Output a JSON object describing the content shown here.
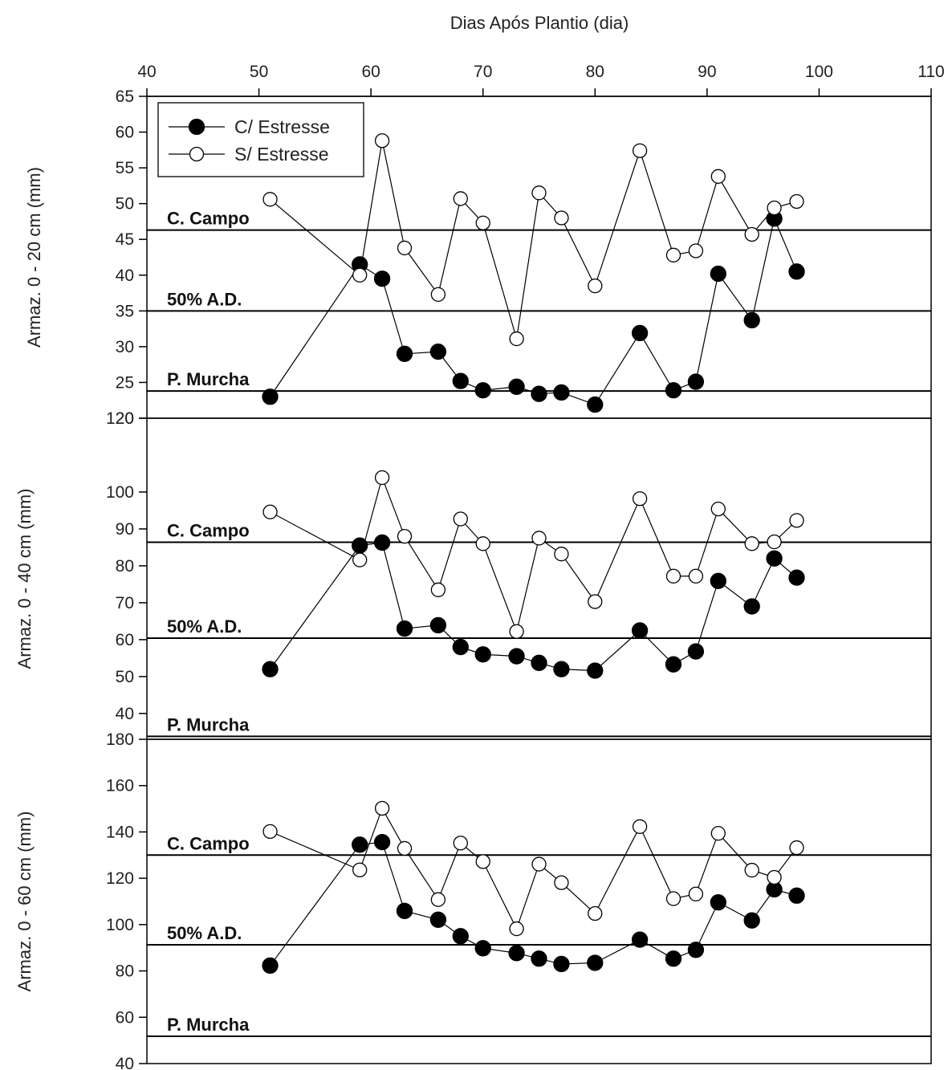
{
  "chart_data": {
    "type": "scatter",
    "x_axis": {
      "label": "Dias Após Plantio (dia)",
      "range": [
        40,
        110
      ],
      "ticks": [
        40,
        50,
        60,
        70,
        80,
        90,
        100,
        110
      ],
      "position": "top"
    },
    "x": [
      51,
      59,
      61,
      63,
      66,
      68,
      70,
      73,
      75,
      77,
      80,
      84,
      87,
      89,
      91,
      94,
      96,
      98
    ],
    "legend": {
      "placement": "top-left",
      "entries": [
        {
          "name": "C/ Estresse",
          "marker": "filled-circle"
        },
        {
          "name": "S/ Estresse",
          "marker": "open-circle"
        }
      ]
    },
    "panels": [
      {
        "ylabel": "Armaz. 0 - 20 cm (mm)",
        "ylim": [
          20,
          65
        ],
        "yticks": [
          20,
          25,
          30,
          35,
          40,
          45,
          50,
          55,
          60,
          65
        ],
        "reference_lines": [
          {
            "label": "C. Campo",
            "value": 46.3
          },
          {
            "label": "50% A.D.",
            "value": 35.0
          },
          {
            "label": "P. Murcha",
            "value": 23.8
          }
        ],
        "series": [
          {
            "name": "C/ Estresse",
            "values": [
              23.0,
              41.5,
              39.5,
              29.0,
              29.3,
              25.2,
              23.9,
              24.4,
              23.4,
              23.6,
              21.9,
              31.9,
              23.9,
              25.1,
              40.2,
              33.7,
              47.9,
              40.5
            ]
          },
          {
            "name": "S/ Estresse",
            "values": [
              50.6,
              40.0,
              58.8,
              43.8,
              37.3,
              50.7,
              47.3,
              31.1,
              51.5,
              48.0,
              38.5,
              57.4,
              42.8,
              43.4,
              53.8,
              45.7,
              49.4,
              50.3
            ]
          }
        ]
      },
      {
        "ylabel": "Armaz. 0 - 40 cm (mm)",
        "ylim": [
          33,
          120
        ],
        "yticks": [
          40,
          50,
          60,
          70,
          80,
          90,
          100,
          120
        ],
        "reference_lines": [
          {
            "label": "C. Campo",
            "value": 86.4
          },
          {
            "label": "50% A.D.",
            "value": 60.4
          },
          {
            "label": "P. Murcha",
            "value": 33.8
          }
        ],
        "series": [
          {
            "name": "C/ Estresse",
            "values": [
              52.0,
              85.5,
              86.3,
              63.0,
              63.9,
              58.0,
              56.0,
              55.5,
              53.7,
              52.0,
              51.6,
              62.5,
              53.3,
              56.8,
              75.9,
              69.0,
              82.0,
              76.8
            ]
          },
          {
            "name": "S/ Estresse",
            "values": [
              94.6,
              81.6,
              103.9,
              88.0,
              73.5,
              92.7,
              86.0,
              62.2,
              87.5,
              83.2,
              70.3,
              98.2,
              77.2,
              77.2,
              95.4,
              86.0,
              86.5,
              92.3
            ]
          }
        ]
      },
      {
        "ylabel": "Armaz. 0 - 60 cm (mm)",
        "ylim": [
          40,
          180
        ],
        "yticks": [
          40,
          60,
          80,
          100,
          120,
          140,
          160,
          180
        ],
        "reference_lines": [
          {
            "label": "C. Campo",
            "value": 130.0
          },
          {
            "label": "50% A.D.",
            "value": 91.3
          },
          {
            "label": "P. Murcha",
            "value": 51.8
          }
        ],
        "series": [
          {
            "name": "C/ Estresse",
            "values": [
              82.3,
              134.5,
              135.6,
              105.9,
              102.1,
              95.0,
              89.8,
              87.7,
              85.3,
              83.0,
              83.5,
              93.5,
              85.3,
              89.1,
              109.6,
              101.8,
              115.2,
              112.5
            ]
          },
          {
            "name": "S/ Estresse",
            "values": [
              140.2,
              123.6,
              150.2,
              132.9,
              110.8,
              135.2,
              127.2,
              98.2,
              126.1,
              118.1,
              104.8,
              142.3,
              111.2,
              113.2,
              139.4,
              123.5,
              120.4,
              133.2
            ]
          }
        ]
      }
    ]
  }
}
